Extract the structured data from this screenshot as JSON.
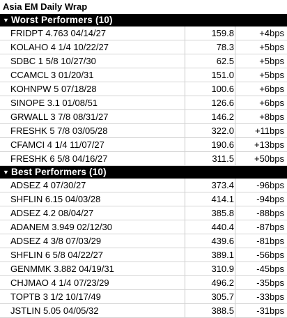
{
  "title": "Asia EM Daily Wrap",
  "worst": {
    "header": "Worst Performers (10)",
    "rows": [
      {
        "name": "FRIDPT 4.763 04/14/27",
        "price": "159.8",
        "change": "+4bps"
      },
      {
        "name": "KOLAHO 4 1/4 10/22/27",
        "price": "78.3",
        "change": "+5bps"
      },
      {
        "name": "SDBC 1 5/8 10/27/30",
        "price": "62.5",
        "change": "+5bps"
      },
      {
        "name": "CCAMCL 3 01/20/31",
        "price": "151.0",
        "change": "+5bps"
      },
      {
        "name": "KOHNPW 5 07/18/28",
        "price": "100.6",
        "change": "+6bps"
      },
      {
        "name": "SINOPE 3.1 01/08/51",
        "price": "126.6",
        "change": "+6bps"
      },
      {
        "name": "GRWALL 3 7/8 08/31/27",
        "price": "146.2",
        "change": "+8bps"
      },
      {
        "name": "FRESHK 5 7/8 03/05/28",
        "price": "322.0",
        "change": "+11bps"
      },
      {
        "name": "CFAMCI 4 1/4 11/07/27",
        "price": "190.6",
        "change": "+13bps"
      },
      {
        "name": "FRESHK 6 5/8 04/16/27",
        "price": "311.5",
        "change": "+50bps"
      }
    ]
  },
  "best": {
    "header": "Best Performers (10)",
    "rows": [
      {
        "name": "ADSEZ 4 07/30/27",
        "price": "373.4",
        "change": "-96bps"
      },
      {
        "name": "SHFLIN 6.15 04/03/28",
        "price": "414.1",
        "change": "-94bps"
      },
      {
        "name": "ADSEZ 4.2 08/04/27",
        "price": "385.8",
        "change": "-88bps"
      },
      {
        "name": "ADANEM 3.949 02/12/30",
        "price": "440.4",
        "change": "-87bps"
      },
      {
        "name": "ADSEZ 4 3/8 07/03/29",
        "price": "439.6",
        "change": "-81bps"
      },
      {
        "name": "SHFLIN 6 5/8 04/22/27",
        "price": "389.1",
        "change": "-56bps"
      },
      {
        "name": "GENMMK 3.882 04/19/31",
        "price": "310.9",
        "change": "-45bps"
      },
      {
        "name": "CHJMAO 4 1/4 07/23/29",
        "price": "496.2",
        "change": "-35bps"
      },
      {
        "name": "TOPTB 3 1/2 10/17/49",
        "price": "305.7",
        "change": "-33bps"
      },
      {
        "name": "JSTLIN 5.05 04/05/32",
        "price": "388.5",
        "change": "-31bps"
      }
    ]
  }
}
